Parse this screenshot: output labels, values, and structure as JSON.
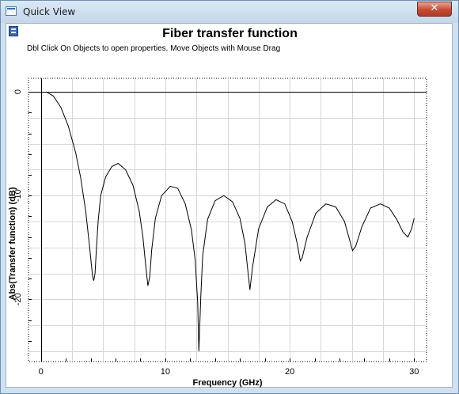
{
  "window": {
    "title": "Quick View",
    "close_label": "✕"
  },
  "chart_data": {
    "type": "line",
    "title": "Fiber transfer function",
    "subtitle": "Dbl Click On Objects to open properties.  Move Objects with Mouse Drag",
    "xlabel": "Frequency (GHz)",
    "ylabel": "Abs(Transfer function) (dB)",
    "xlim": [
      -1,
      31
    ],
    "ylim": [
      -26,
      1.3
    ],
    "x_ticks": [
      0,
      10,
      20,
      30
    ],
    "y_ticks": [
      0,
      -10,
      -20
    ],
    "grid": true,
    "legend": "none",
    "series": [
      {
        "color": "#000000",
        "x": [
          0.4,
          1.0,
          1.6,
          2.2,
          2.8,
          3.2,
          3.6,
          3.9,
          4.15,
          4.25,
          4.35,
          4.45,
          4.6,
          4.8,
          5.2,
          5.7,
          6.2,
          6.8,
          7.4,
          7.9,
          8.2,
          8.4,
          8.6,
          8.75,
          8.9,
          9.2,
          9.7,
          10.4,
          11.0,
          11.6,
          12.1,
          12.4,
          12.6,
          12.7,
          12.85,
          13.0,
          13.4,
          14.0,
          14.7,
          15.4,
          16.0,
          16.4,
          16.65,
          16.8,
          17.0,
          17.5,
          18.2,
          18.9,
          19.6,
          20.2,
          20.6,
          20.85,
          21.0,
          21.4,
          22.1,
          22.9,
          23.7,
          24.4,
          24.8,
          25.05,
          25.3,
          25.8,
          26.5,
          27.3,
          28.0,
          28.6,
          29.1,
          29.5,
          29.8,
          30.0
        ],
        "y": [
          0,
          -0.4,
          -1.5,
          -3.3,
          -5.9,
          -8.3,
          -11.5,
          -14.8,
          -17.8,
          -18.2,
          -17.5,
          -15.3,
          -12.5,
          -10.0,
          -8.2,
          -7.2,
          -6.9,
          -7.5,
          -9.0,
          -11.5,
          -14.0,
          -16.5,
          -18.7,
          -17.8,
          -15.3,
          -12.2,
          -10.0,
          -9.1,
          -9.3,
          -10.8,
          -13.3,
          -16.2,
          -20.3,
          -25.0,
          -19.8,
          -15.8,
          -12.3,
          -10.5,
          -10.0,
          -10.6,
          -12.2,
          -14.6,
          -17.4,
          -19.1,
          -17.0,
          -13.2,
          -11.1,
          -10.4,
          -10.8,
          -12.5,
          -14.6,
          -16.3,
          -16.0,
          -14.0,
          -11.7,
          -10.8,
          -11.1,
          -12.5,
          -14.2,
          -15.3,
          -14.9,
          -13.0,
          -11.2,
          -10.8,
          -11.2,
          -12.3,
          -13.5,
          -14.0,
          -13.2,
          -12.2
        ]
      }
    ]
  }
}
